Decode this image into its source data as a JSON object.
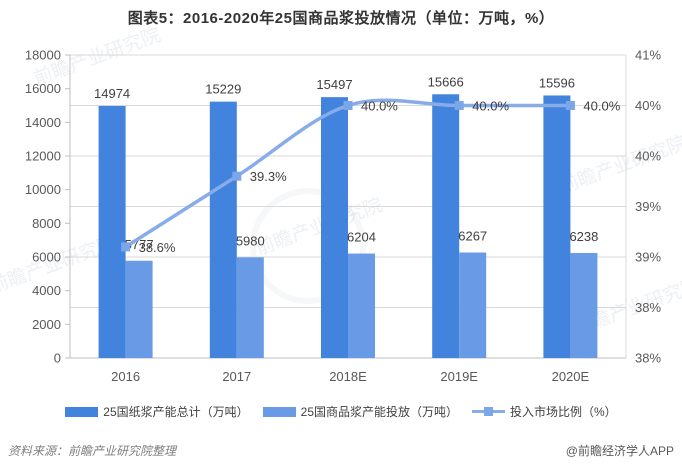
{
  "title": "图表5：2016-2020年25国商品浆投放情况（单位：万吨，%）",
  "watermark_text": "前瞻产业研究院",
  "chart_data": {
    "type": "bar",
    "subtype": "grouped-bars-with-line",
    "title": "图表5：2016-2020年25国商品浆投放情况（单位：万吨，%）",
    "categories": [
      "2016",
      "2017",
      "2018E",
      "2019E",
      "2020E"
    ],
    "series": [
      {
        "name": "25国纸浆产能总计（万吨）",
        "type": "bar",
        "axis": "left",
        "color": "#4283de",
        "values": [
          14974,
          15229,
          15497,
          15666,
          15596
        ]
      },
      {
        "name": "25国商品浆产能投放（万吨）",
        "type": "bar",
        "axis": "left",
        "color": "#699ae5",
        "values": [
          5777,
          5980,
          6204,
          6267,
          6238
        ]
      },
      {
        "name": "投入市场比例（%）",
        "type": "line",
        "axis": "right",
        "color": "#88acea",
        "marker_color": "#7ba6e8",
        "values": [
          38.6,
          39.3,
          40.0,
          40.0,
          40.0
        ],
        "value_labels": [
          "38.6%",
          "39.3%",
          "40.0%",
          "40.0%",
          "40.0%"
        ]
      }
    ],
    "left_axis": {
      "min": 0,
      "max": 18000,
      "step": 2000,
      "labels": [
        "0",
        "2000",
        "4000",
        "6000",
        "8000",
        "10000",
        "12000",
        "14000",
        "16000",
        "18000"
      ]
    },
    "right_axis": {
      "min": 37.5,
      "max": 40.5,
      "step": 0.5,
      "labels_bottom_to_top": [
        "38%",
        "38%",
        "39%",
        "39%",
        "40%",
        "40%",
        "41%"
      ]
    },
    "grid": true,
    "legend_position": "bottom",
    "colors": {
      "gridline": "#d9d9d9",
      "axis_line": "#bfbfbf",
      "axis_text": "#595959",
      "label_text": "#3f3f3f"
    }
  },
  "footer": {
    "source": "资料来源：前瞻产业研究院整理",
    "credit": "@前瞻经济学人APP"
  }
}
